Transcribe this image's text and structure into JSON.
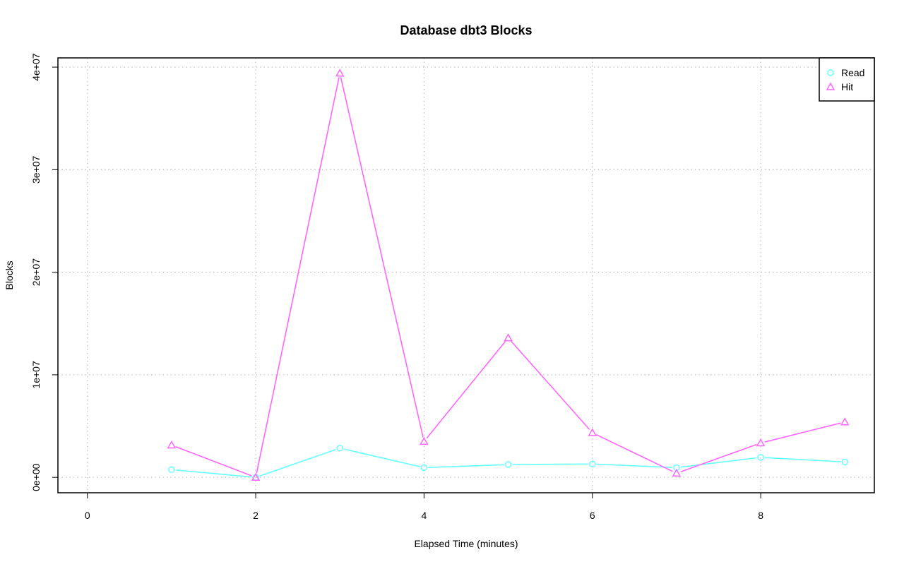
{
  "chart_data": {
    "type": "line",
    "title": "Database dbt3 Blocks",
    "xlabel": "Elapsed Time (minutes)",
    "ylabel": "Blocks",
    "xlim": [
      -0.35,
      9.35
    ],
    "ylim": [
      -1500000,
      40900000
    ],
    "x_ticks": [
      0,
      2,
      4,
      6,
      8
    ],
    "x_tick_labels": [
      "0",
      "2",
      "4",
      "6",
      "8"
    ],
    "y_ticks": [
      0,
      10000000,
      20000000,
      30000000,
      40000000
    ],
    "y_tick_labels": [
      "0e+00",
      "1e+07",
      "2e+07",
      "3e+07",
      "4e+07"
    ],
    "grid": true,
    "legend_position": "top-right",
    "x": [
      1,
      2,
      3,
      4,
      5,
      6,
      7,
      8,
      9
    ],
    "series": [
      {
        "name": "Read",
        "color": "#66ffff",
        "marker": "circle",
        "values": [
          750000,
          0,
          2850000,
          950000,
          1250000,
          1300000,
          950000,
          1950000,
          1500000
        ]
      },
      {
        "name": "Hit",
        "color": "#ff66ff",
        "marker": "triangle",
        "values": [
          3150000,
          0,
          39400000,
          3500000,
          13600000,
          4350000,
          400000,
          3350000,
          5400000
        ]
      }
    ]
  }
}
